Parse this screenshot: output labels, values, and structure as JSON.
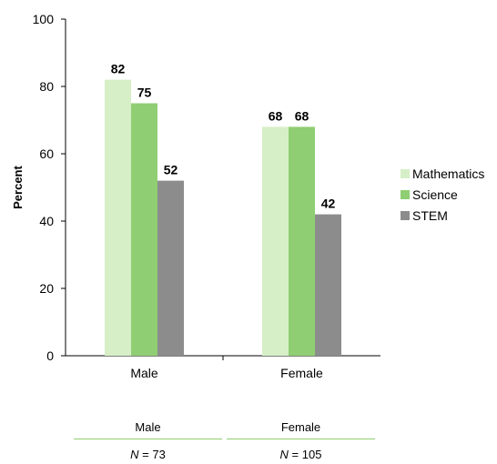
{
  "chart_data": {
    "type": "bar",
    "categories": [
      "Male",
      "Female"
    ],
    "series": [
      {
        "name": "Mathematics",
        "values": [
          82,
          68
        ],
        "color": "#d6efc6"
      },
      {
        "name": "Science",
        "values": [
          75,
          68
        ],
        "color": "#8fce72"
      },
      {
        "name": "STEM",
        "values": [
          52,
          42
        ],
        "color": "#8c8c8c"
      }
    ],
    "ylabel": "Percent",
    "xlabel": "",
    "ylim": [
      0,
      100
    ],
    "yticks": [
      0,
      20,
      40,
      60,
      80,
      100
    ],
    "data_labels": true,
    "legend": "right",
    "grid": false
  },
  "footer": {
    "columns": [
      {
        "name": "Male",
        "n_label": "N",
        "n_value": "= 73"
      },
      {
        "name": "Female",
        "n_label": "N",
        "n_value": "= 105"
      }
    ],
    "rule_color": "#8fce72"
  }
}
